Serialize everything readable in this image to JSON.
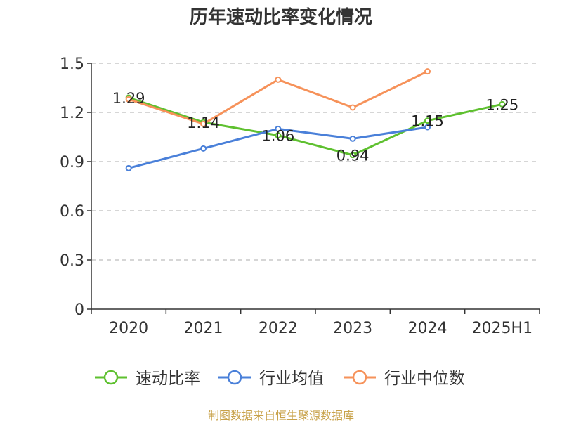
{
  "chart_data": {
    "type": "line",
    "title": "历年速动比率变化情况",
    "categories": [
      "2020",
      "2021",
      "2022",
      "2023",
      "2024",
      "2025H1"
    ],
    "ylim": [
      0,
      1.5
    ],
    "yticks": [
      "0",
      "0.3",
      "0.6",
      "0.9",
      "1.2",
      "1.5"
    ],
    "grid": true,
    "legend_position": "bottom",
    "series": [
      {
        "name": "速动比率",
        "color": "#5ec02f",
        "values": [
          1.29,
          1.14,
          1.06,
          0.94,
          1.15,
          1.25
        ],
        "labels": [
          "1.29",
          "1.14",
          "1.06",
          "0.94",
          "1.15",
          "1.25"
        ]
      },
      {
        "name": "行业均值",
        "color": "#4a80d9",
        "values": [
          0.86,
          0.98,
          1.1,
          1.04,
          1.11,
          null
        ]
      },
      {
        "name": "行业中位数",
        "color": "#f6925a",
        "values": [
          1.28,
          1.13,
          1.4,
          1.23,
          1.45,
          null
        ]
      }
    ]
  },
  "source_note": "制图数据来自恒生聚源数据库"
}
